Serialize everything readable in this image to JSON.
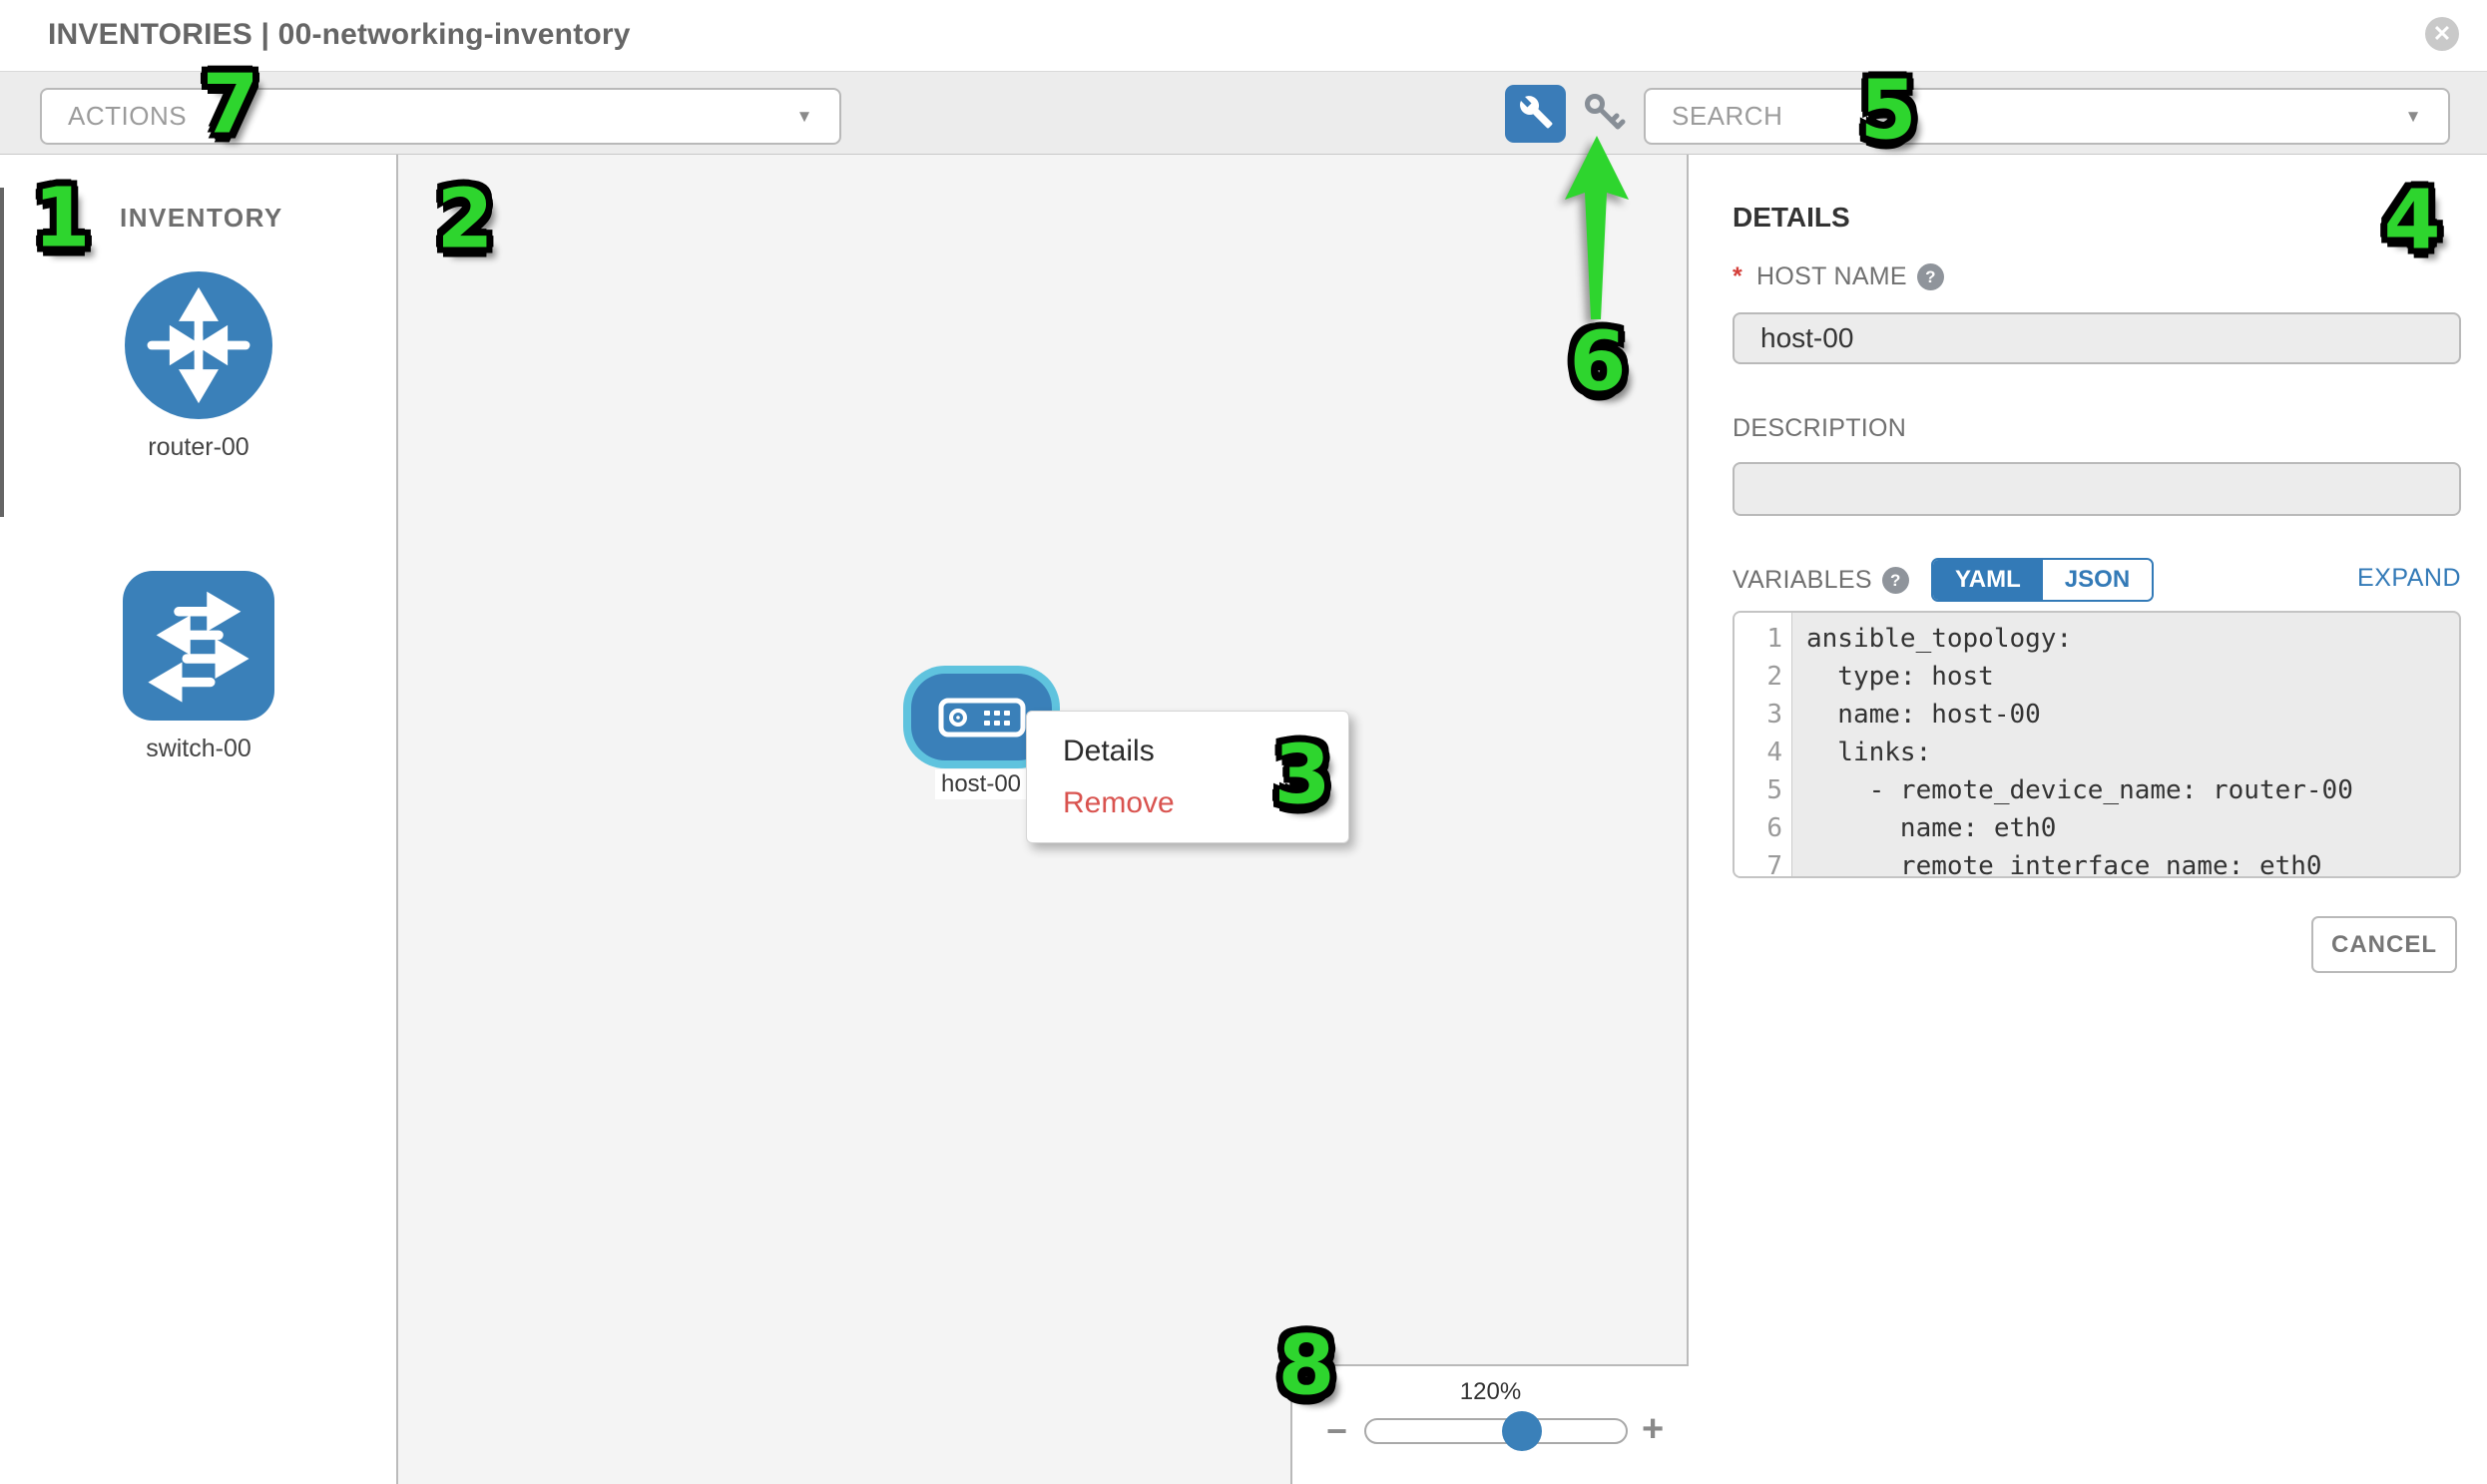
{
  "colors": {
    "accent_blue": "#337ab7",
    "node_blue": "#3a80b9",
    "selection_ring": "#5fc3de",
    "remove_red": "#d9534f",
    "annotation_green": "#2ed52e",
    "toolbar_gray": "#ececec",
    "canvas_gray": "#f4f4f4"
  },
  "header": {
    "title": "INVENTORIES | 00-networking-inventory",
    "close_glyph": "✕"
  },
  "toolbar": {
    "actions_label": "ACTIONS",
    "search_label": "SEARCH",
    "caret_glyph": "▼",
    "wrench_icon": "wrench",
    "key_icon": "key"
  },
  "sidebar": {
    "title": "INVENTORY",
    "items": [
      {
        "label": "router-00",
        "type": "router"
      },
      {
        "label": "switch-00",
        "type": "switch"
      }
    ]
  },
  "canvas": {
    "node": {
      "label": "host-00",
      "type": "host",
      "selected": true
    },
    "context_menu": {
      "items": [
        {
          "label": "Details"
        },
        {
          "label": "Remove"
        }
      ]
    },
    "zoom_control": {
      "level": "120%",
      "minus_glyph": "−",
      "plus_glyph": "+",
      "slider_position_pct": 60
    }
  },
  "details_panel": {
    "title": "DETAILS",
    "host_name": {
      "required_marker": "*",
      "label": "HOST NAME",
      "help_glyph": "?",
      "value": "host-00"
    },
    "description": {
      "label": "DESCRIPTION",
      "value": ""
    },
    "variables": {
      "label": "VARIABLES",
      "help_glyph": "?",
      "tabs": [
        {
          "label": "YAML",
          "active": true
        },
        {
          "label": "JSON",
          "active": false
        }
      ],
      "expand_label": "EXPAND",
      "editor": {
        "lines": [
          {
            "num": "1",
            "code": "ansible_topology:"
          },
          {
            "num": "2",
            "code": "  type: host"
          },
          {
            "num": "3",
            "code": "  name: host-00"
          },
          {
            "num": "4",
            "code": "  links:"
          },
          {
            "num": "5",
            "code": "    - remote_device_name: router-00"
          },
          {
            "num": "6",
            "code": "      name: eth0"
          },
          {
            "num": "7",
            "code": "      remote_interface_name: eth0"
          }
        ]
      }
    },
    "cancel_label": "CANCEL"
  },
  "annotations": {
    "n1": "1",
    "n2": "2",
    "n3": "3",
    "n4": "4",
    "n5": "5",
    "n6": "6",
    "n7": "7",
    "n8": "8",
    "arrow": "green arrow pointing up at key icon"
  }
}
